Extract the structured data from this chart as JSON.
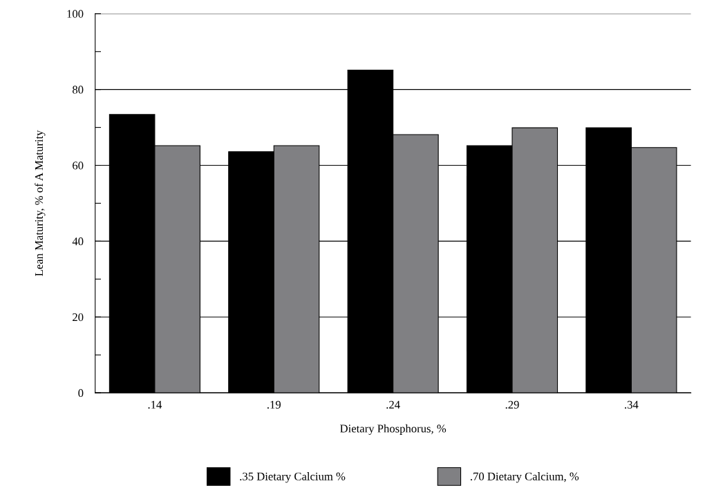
{
  "chart_data": {
    "type": "bar",
    "xlabel": "Dietary Phosphorus, %",
    "ylabel": "Lean Maturity, % of A Maturity",
    "categories": [
      ".14",
      ".19",
      ".24",
      ".29",
      ".34"
    ],
    "series": [
      {
        "name": ".35 Dietary Calcium %",
        "color": "#000000",
        "values": [
          73.4,
          63.6,
          85.1,
          65.2,
          69.9
        ]
      },
      {
        "name": ".70 Dietary Calcium, %",
        "color": "#808083",
        "values": [
          65.2,
          65.2,
          68.1,
          69.9,
          64.7
        ]
      }
    ],
    "ylim": [
      0,
      100
    ],
    "yticks": [
      0,
      {
        "value": 10,
        "label": null
      },
      20,
      {
        "value": 30,
        "label": null
      },
      40,
      {
        "value": 50,
        "label": null
      },
      60,
      {
        "value": 70,
        "label": null
      },
      80,
      {
        "value": 90,
        "label": null
      },
      100
    ],
    "grid": "y",
    "legend": "bottom"
  }
}
